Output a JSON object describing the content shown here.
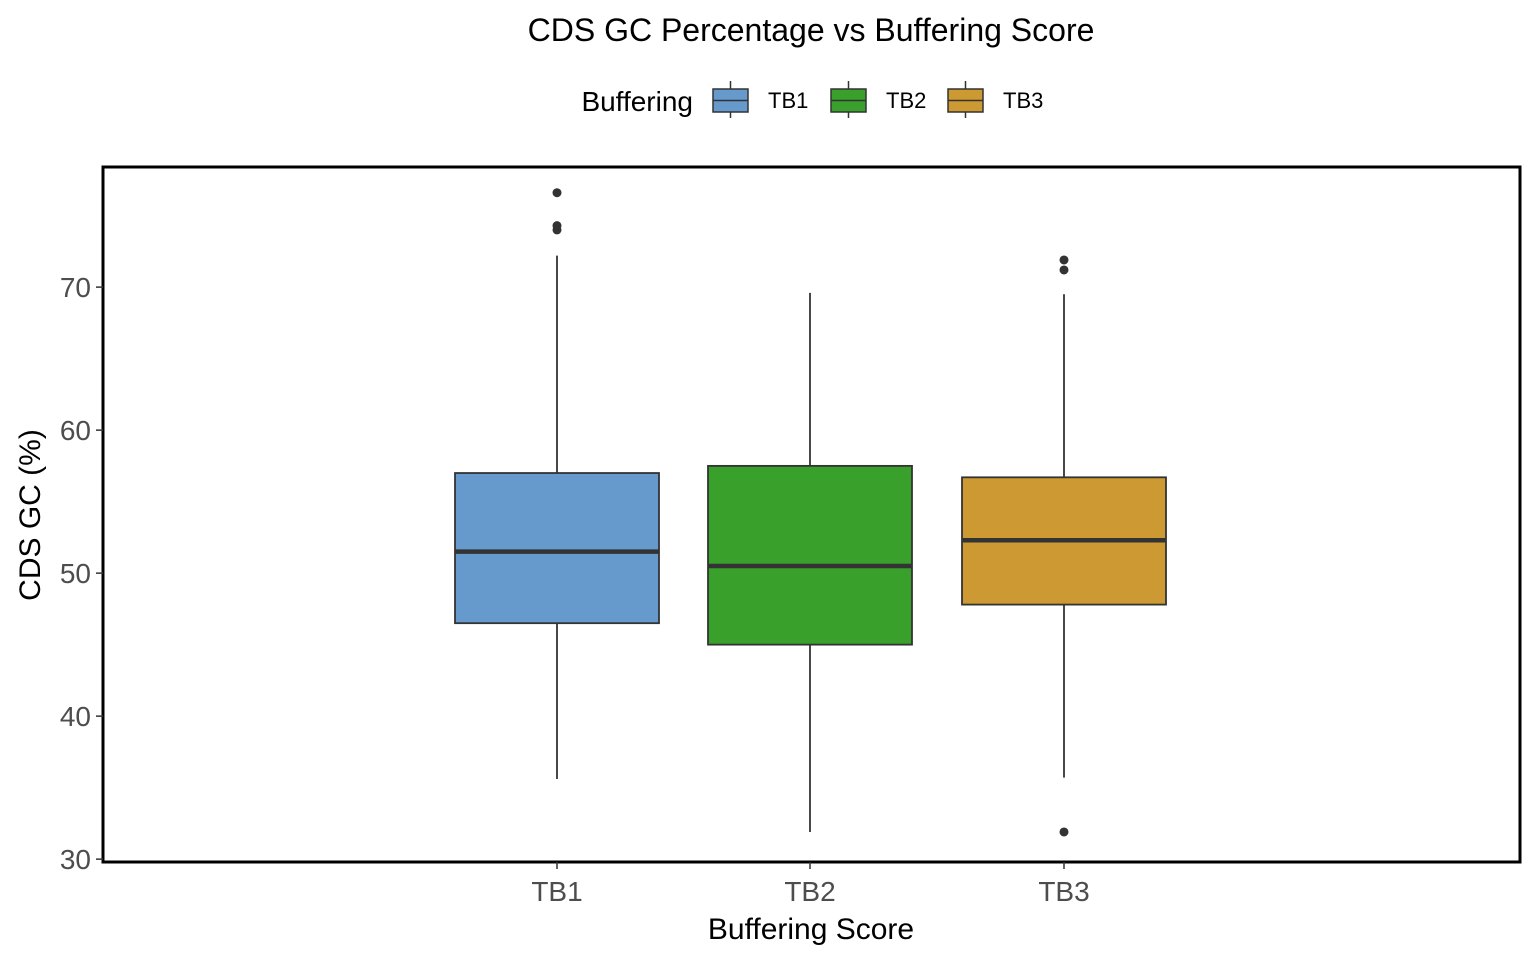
{
  "chart_data": {
    "type": "box",
    "title": "CDS GC Percentage vs Buffering Score",
    "xlabel": "Buffering Score",
    "ylabel": "CDS GC (%)",
    "legend": {
      "title": "Buffering",
      "position": "top"
    },
    "categories": [
      "TB1",
      "TB2",
      "TB3"
    ],
    "colors": [
      "#6699cc",
      "#3aa02c",
      "#cc9933"
    ],
    "ylim": [
      29.8,
      78.4
    ],
    "yticks": [
      30,
      40,
      50,
      60,
      70
    ],
    "grid": false,
    "boxes": [
      {
        "name": "TB1",
        "lower_whisker": 35.6,
        "q1": 46.5,
        "median": 51.5,
        "q3": 57.0,
        "upper_whisker": 72.2,
        "outliers": [
          74.0,
          74.3,
          76.6
        ]
      },
      {
        "name": "TB2",
        "lower_whisker": 31.9,
        "q1": 45.0,
        "median": 50.5,
        "q3": 57.5,
        "upper_whisker": 69.6,
        "outliers": []
      },
      {
        "name": "TB3",
        "lower_whisker": 35.7,
        "q1": 47.8,
        "median": 52.3,
        "q3": 56.7,
        "upper_whisker": 69.5,
        "outliers": [
          31.9,
          71.2,
          71.9
        ]
      }
    ]
  }
}
